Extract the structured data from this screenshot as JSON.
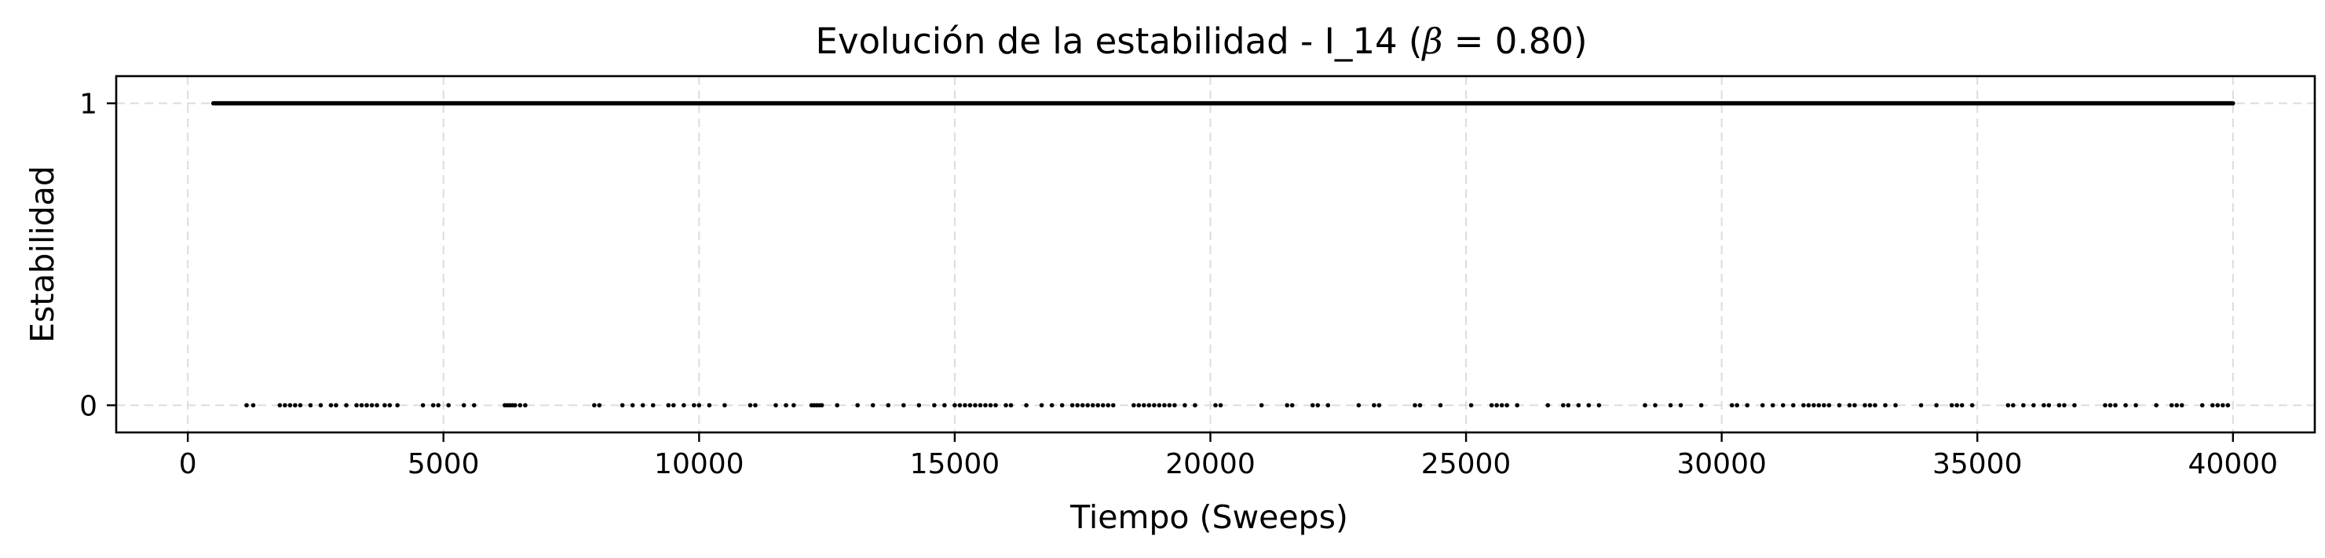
{
  "chart_data": {
    "type": "scatter",
    "title_prefix": "Evolución de la estabilidad - I_14 (",
    "title_symbol": "β",
    "title_value": " = 0.80",
    "title_suffix": ")",
    "xlabel": "Tiempo (Sweeps)",
    "ylabel": "Estabilidad",
    "xlim": [
      -1400,
      41600
    ],
    "ylim": [
      -0.09,
      1.09
    ],
    "x_ticks": [
      0,
      5000,
      10000,
      15000,
      20000,
      25000,
      30000,
      35000,
      40000
    ],
    "y_ticks": [
      0,
      1
    ],
    "grid": true,
    "legend": "none",
    "marker_color": "#000000",
    "series": [
      {
        "stable_range": [
          500,
          40000
        ],
        "stable_value": 1,
        "unstable_value": 0,
        "unstable_x": [
          1150,
          1280,
          1800,
          1900,
          2000,
          2100,
          2200,
          2400,
          2600,
          2800,
          2900,
          3100,
          3300,
          3400,
          3500,
          3600,
          3700,
          3850,
          3950,
          4100,
          4600,
          4800,
          4900,
          5100,
          5400,
          5600,
          6200,
          6250,
          6300,
          6350,
          6400,
          6500,
          6600,
          7950,
          8050,
          8500,
          8700,
          8900,
          9100,
          9400,
          9500,
          9700,
          9900,
          10000,
          10200,
          10500,
          11000,
          11100,
          11500,
          11700,
          11850,
          12200,
          12250,
          12300,
          12350,
          12400,
          12700,
          13100,
          13400,
          13700,
          14000,
          14300,
          14600,
          14800,
          15000,
          15100,
          15200,
          15300,
          15400,
          15500,
          15600,
          15700,
          15800,
          16000,
          16100,
          16400,
          16700,
          16900,
          17100,
          17300,
          17400,
          17500,
          17600,
          17700,
          17800,
          17900,
          18000,
          18100,
          18500,
          18600,
          18700,
          18800,
          18900,
          19000,
          19100,
          19200,
          19300,
          19500,
          19700,
          20100,
          20200,
          21000,
          21500,
          21600,
          22000,
          22100,
          22300,
          22900,
          23200,
          23300,
          24000,
          24100,
          24500,
          25100,
          25500,
          25600,
          25700,
          25800,
          26000,
          26600,
          26900,
          27000,
          27200,
          27400,
          27600,
          28500,
          28700,
          29000,
          29200,
          29600,
          30200,
          30300,
          30500,
          30800,
          31000,
          31200,
          31400,
          31600,
          31700,
          31800,
          31900,
          32000,
          32100,
          32300,
          32500,
          32600,
          32800,
          32900,
          33000,
          33200,
          33400,
          33900,
          34200,
          34500,
          34600,
          34700,
          34900,
          35600,
          35700,
          35900,
          36100,
          36300,
          36400,
          36600,
          36700,
          36900,
          37500,
          37600,
          37700,
          37900,
          38100,
          38500,
          38800,
          38900,
          39000,
          39400,
          39600,
          39700,
          39800,
          39900
        ]
      }
    ]
  }
}
